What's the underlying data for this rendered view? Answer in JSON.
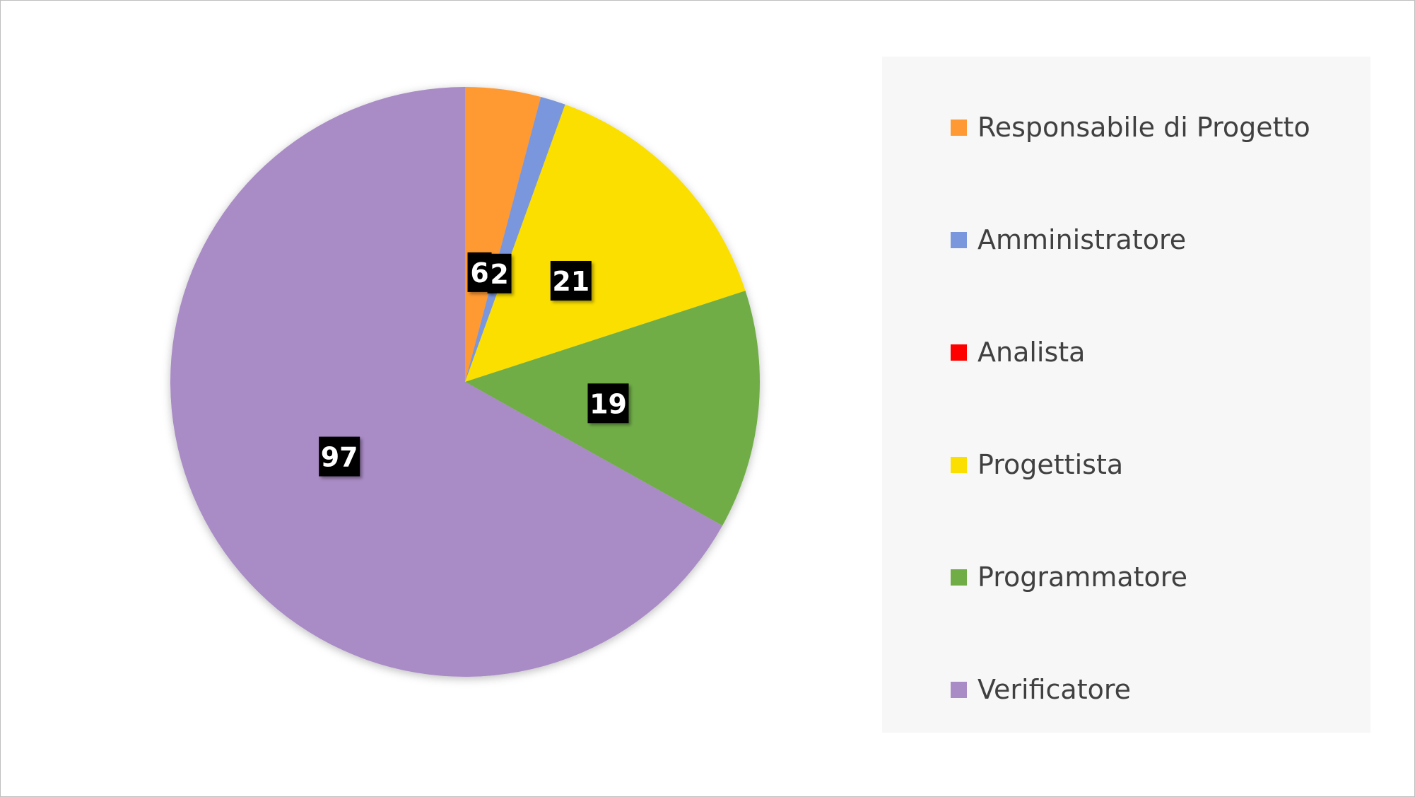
{
  "chart_data": {
    "type": "pie",
    "categories": [
      "Responsabile di Progetto",
      "Amministratore",
      "Analista",
      "Progettista",
      "Programmatore",
      "Verificatore"
    ],
    "values": [
      6,
      2,
      0,
      21,
      19,
      97
    ],
    "colors": [
      "#FF9933",
      "#7A96DC",
      "#FF0000",
      "#FBDF00",
      "#70AD47",
      "#A98BC5"
    ],
    "data_labels": [
      "6",
      "2",
      "",
      "21",
      "19",
      "97"
    ],
    "legend_position": "right",
    "title": ""
  }
}
